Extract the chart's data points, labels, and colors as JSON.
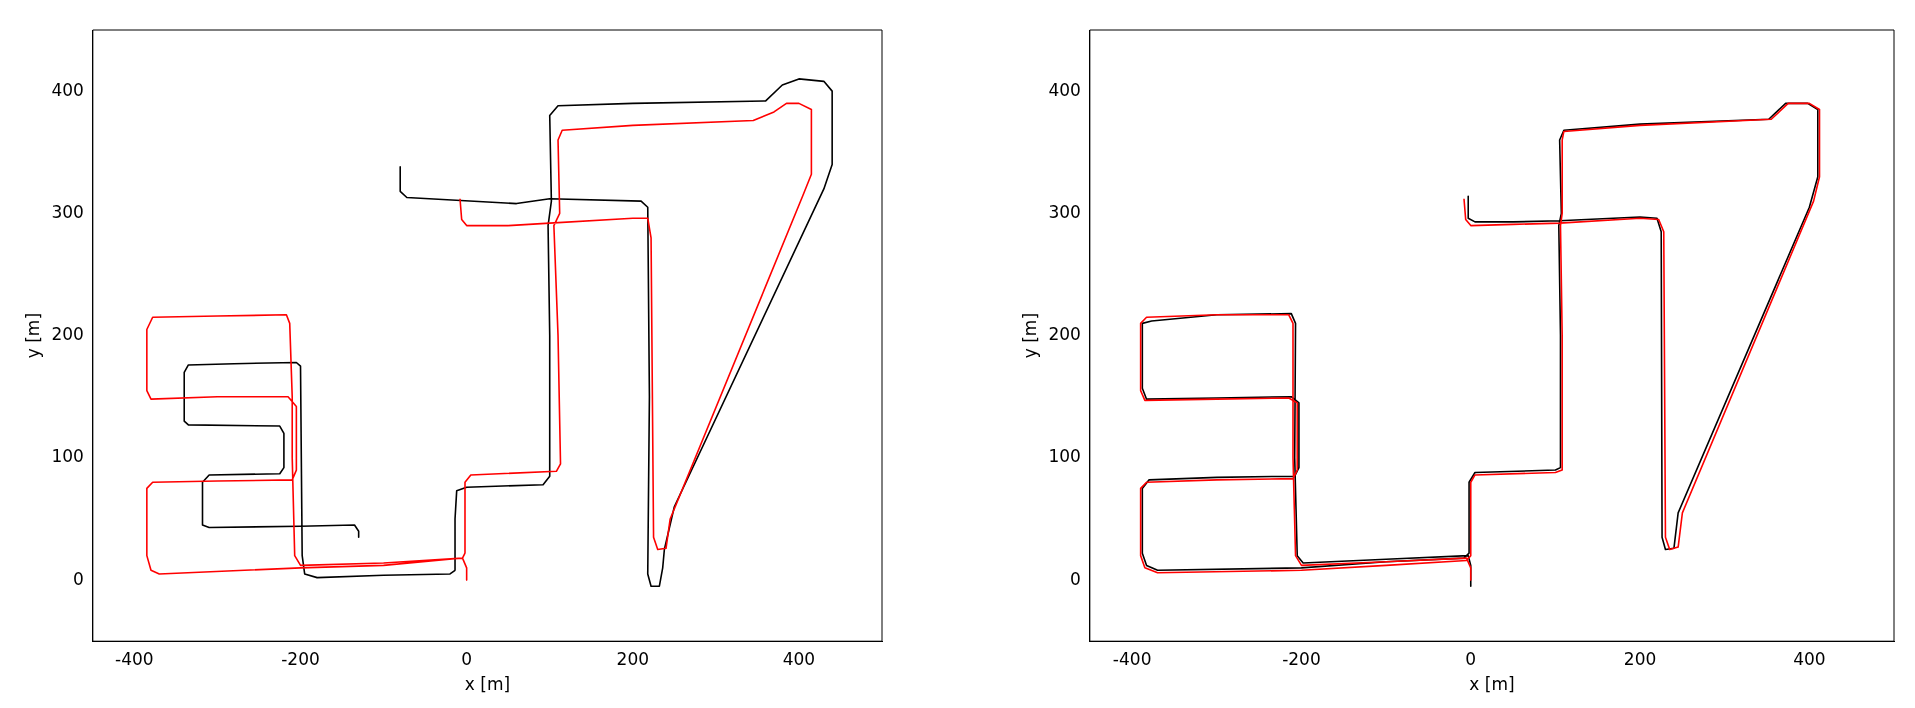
{
  "chart_data": [
    {
      "type": "line",
      "xlabel": "x [m]",
      "ylabel": "y [m]",
      "xlim": [
        -450,
        500
      ],
      "ylim": [
        -50,
        450
      ],
      "xticks": [
        -400,
        -200,
        0,
        200,
        400
      ],
      "yticks": [
        0,
        100,
        200,
        300,
        400
      ],
      "series": [
        {
          "color": "#ff0000",
          "x": [
            -8,
            -6,
            0,
            50,
            100,
            200,
            218,
            222,
            225,
            230,
            240,
            245,
            405,
            415,
            415,
            400,
            385,
            370,
            345,
            200,
            115,
            110,
            112,
            105,
            110,
            113,
            108,
            5,
            -2,
            -2,
            -5,
            -100,
            -200,
            -370,
            -380,
            -385,
            -385,
            -378,
            -300,
            -210,
            -205,
            -205,
            -215,
            -300,
            -380,
            -385,
            -385,
            -378,
            -300,
            -217,
            -213,
            -210,
            -210,
            -207,
            -200,
            -100,
            -5,
            0,
            0
          ],
          "values": [
            312,
            295,
            290,
            290,
            292,
            296,
            296,
            280,
            35,
            25,
            26,
            50,
            315,
            332,
            385,
            390,
            390,
            383,
            376,
            372,
            368,
            360,
            300,
            290,
            200,
            95,
            89,
            86,
            80,
            22,
            18,
            12,
            10,
            5,
            8,
            20,
            75,
            80,
            81,
            82,
            90,
            142,
            150,
            150,
            148,
            155,
            205,
            215,
            216,
            217,
            210,
            150,
            100,
            20,
            12,
            14,
            18,
            10,
            0
          ]
        },
        {
          "color": "#000000",
          "x": [
            -80,
            -80,
            -72,
            60,
            100,
            210,
            218,
            220,
            218,
            222,
            232,
            236,
            238,
            250,
            430,
            440,
            440,
            430,
            400,
            380,
            360,
            200,
            110,
            100,
            102,
            98,
            100,
            100,
            92,
            0,
            -12,
            -14,
            -14,
            -20,
            -100,
            -180,
            -195,
            -198,
            -200,
            -205,
            -280,
            -335,
            -340,
            -340,
            -335,
            -225,
            -220,
            -220,
            -225,
            -310,
            -318,
            -318,
            -310,
            -200,
            -135,
            -130,
            -130
          ],
          "values": [
            338,
            318,
            313,
            308,
            312,
            310,
            305,
            150,
            5,
            -5,
            -5,
            10,
            25,
            60,
            320,
            340,
            400,
            408,
            410,
            405,
            392,
            390,
            388,
            380,
            310,
            290,
            200,
            85,
            78,
            76,
            73,
            50,
            8,
            5,
            4,
            2,
            5,
            20,
            175,
            178,
            177,
            176,
            170,
            130,
            127,
            126,
            120,
            92,
            87,
            86,
            80,
            45,
            43,
            44,
            45,
            40,
            35
          ]
        }
      ]
    },
    {
      "type": "line",
      "xlabel": "x [m]",
      "ylabel": "y [m]",
      "xlim": [
        -450,
        500
      ],
      "ylim": [
        -50,
        450
      ],
      "xticks": [
        -400,
        -200,
        0,
        200,
        400
      ],
      "yticks": [
        0,
        100,
        200,
        300,
        400
      ],
      "series": [
        {
          "color": "#ff0000",
          "x": [
            -8,
            -6,
            0,
            50,
            105,
            200,
            222,
            228,
            230,
            235,
            245,
            250,
            405,
            412,
            412,
            400,
            375,
            355,
            200,
            110,
            108,
            108,
            106,
            108,
            108,
            100,
            5,
            0,
            0,
            -5,
            -100,
            -200,
            -370,
            -385,
            -390,
            -390,
            -383,
            -300,
            -210,
            -205,
            -205,
            -215,
            -300,
            -385,
            -390,
            -390,
            -383,
            -300,
            -215,
            -210,
            -210,
            -207,
            -200,
            -100,
            -5,
            0,
            0
          ],
          "values": [
            312,
            295,
            290,
            291,
            292,
            296,
            295,
            285,
            35,
            25,
            27,
            55,
            310,
            330,
            385,
            390,
            390,
            377,
            372,
            367,
            360,
            300,
            290,
            200,
            90,
            88,
            86,
            80,
            20,
            16,
            12,
            8,
            6,
            10,
            20,
            75,
            80,
            82,
            83,
            90,
            145,
            149,
            148,
            147,
            155,
            210,
            215,
            217,
            217,
            210,
            100,
            20,
            12,
            15,
            18,
            10,
            0
          ]
        },
        {
          "color": "#000000",
          "x": [
            -3,
            -3,
            5,
            50,
            105,
            200,
            220,
            225,
            226,
            230,
            240,
            245,
            400,
            410,
            410,
            398,
            372,
            352,
            200,
            110,
            105,
            107,
            104,
            106,
            106,
            100,
            5,
            -2,
            -2,
            -8,
            -100,
            -200,
            -370,
            -383,
            -388,
            -388,
            -380,
            -300,
            -208,
            -203,
            -203,
            -212,
            -300,
            -383,
            -388,
            -388,
            -377,
            -300,
            -212,
            -207,
            -208,
            -205,
            -198,
            -100,
            -3,
            0,
            0
          ],
          "values": [
            314,
            296,
            293,
            293,
            294,
            297,
            296,
            285,
            35,
            25,
            26,
            55,
            305,
            330,
            385,
            390,
            390,
            377,
            373,
            368,
            360,
            300,
            290,
            200,
            92,
            90,
            88,
            80,
            22,
            18,
            15,
            10,
            8,
            12,
            22,
            75,
            82,
            84,
            85,
            92,
            145,
            150,
            149,
            148,
            157,
            210,
            212,
            217,
            218,
            210,
            100,
            20,
            14,
            17,
            20,
            12,
            -5
          ]
        }
      ]
    }
  ]
}
